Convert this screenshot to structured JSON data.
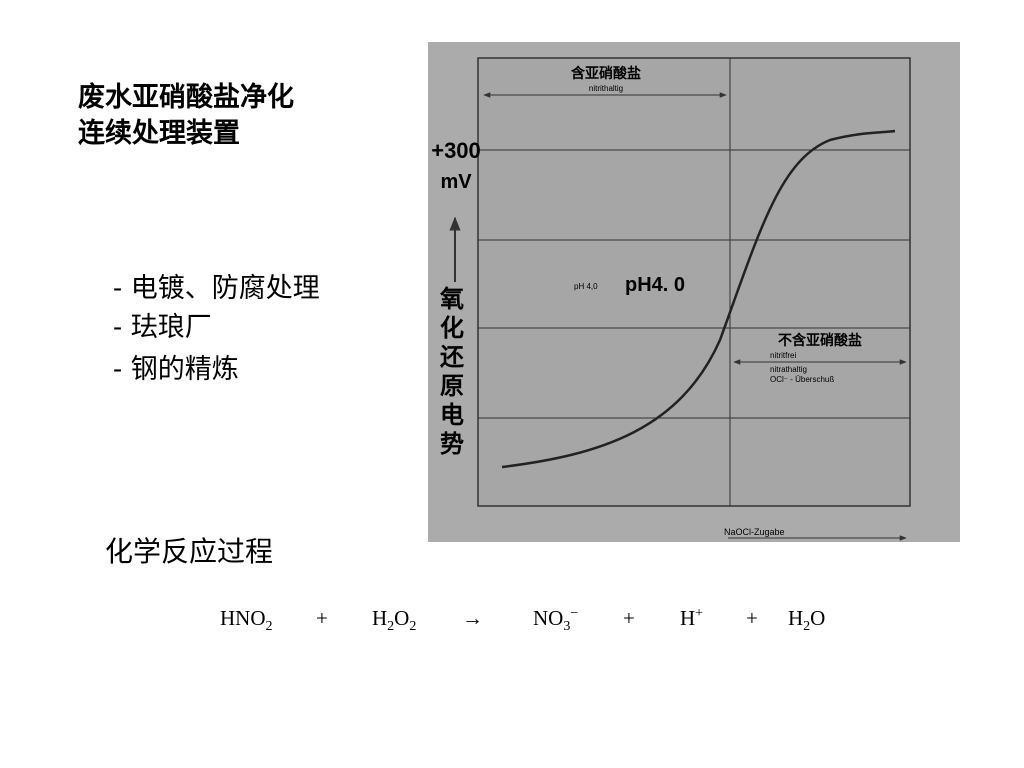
{
  "title": [
    "废水亚硝酸盐净化",
    "连续处理装置"
  ],
  "bullets": [
    "- 电镀、防腐处理",
    "- 珐琅厂",
    "- 钢的精炼"
  ],
  "figure": {
    "top_label": "含亚硝酸盐",
    "top_sublabel": "nitrithaltig",
    "y_value": "+300",
    "y_unit": "mV",
    "y_axis_label": "氧化还原电势",
    "ph_small": "pH 4,0",
    "ph_label": "pH4. 0",
    "right_label": "不含亚硝酸盐",
    "right_sublabels": [
      "nitritfrei",
      "nitrathaltig",
      "OCl⁻ - Überschuß"
    ],
    "x_axis_label": "NaOCl-Zugabe"
  },
  "section_title": "化学反应过程",
  "equation": [
    [
      {
        "text": "HNO"
      },
      {
        "sub": "2"
      }
    ],
    [
      {
        "text": "+"
      }
    ],
    [
      {
        "text": "H"
      },
      {
        "sub": "2"
      },
      {
        "text": "O"
      },
      {
        "sub": "2"
      }
    ],
    [
      {
        "text": "→"
      }
    ],
    [
      {
        "text": "NO"
      },
      {
        "sub": "3"
      },
      {
        "sup": "−"
      }
    ],
    [
      {
        "text": "+"
      }
    ],
    [
      {
        "text": "H"
      },
      {
        "sup": "+"
      }
    ],
    [
      {
        "text": "+"
      }
    ],
    [
      {
        "text": "H"
      },
      {
        "sub": "2"
      },
      {
        "text": "O"
      }
    ]
  ]
}
